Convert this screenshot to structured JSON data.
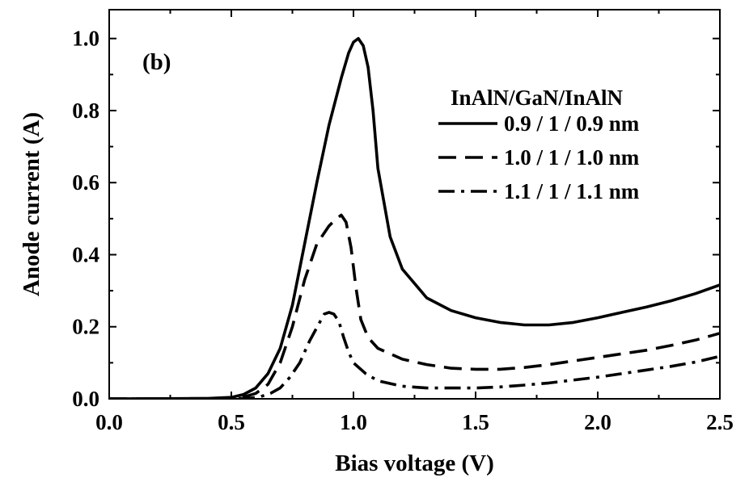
{
  "chart_data": {
    "type": "line",
    "panel_label": "(b)",
    "xlabel": "Bias voltage (V)",
    "ylabel": "Anode current (A)",
    "xlim": [
      0.0,
      2.5
    ],
    "ylim": [
      0.0,
      1.08
    ],
    "x_ticks": [
      0.0,
      0.5,
      1.0,
      1.5,
      2.0,
      2.5
    ],
    "x_tick_labels": [
      "0.0",
      "0.5",
      "1.0",
      "1.5",
      "2.0",
      "2.5"
    ],
    "y_ticks": [
      0.0,
      0.2,
      0.4,
      0.6,
      0.8,
      1.0
    ],
    "y_tick_labels": [
      "0.0",
      "0.2",
      "0.4",
      "0.6",
      "0.8",
      "1.0"
    ],
    "grid": false,
    "legend": {
      "title": "InAlN/GaN/InAlN",
      "placement": "top-right"
    },
    "series": [
      {
        "name": "0.9 / 1 / 0.9 nm",
        "style": "solid",
        "color": "#000000",
        "x": [
          0.0,
          0.4,
          0.5,
          0.55,
          0.6,
          0.65,
          0.7,
          0.75,
          0.8,
          0.85,
          0.9,
          0.95,
          0.98,
          1.0,
          1.02,
          1.04,
          1.06,
          1.08,
          1.1,
          1.15,
          1.2,
          1.3,
          1.4,
          1.5,
          1.6,
          1.7,
          1.8,
          1.9,
          2.0,
          2.1,
          2.2,
          2.3,
          2.4,
          2.5
        ],
        "y": [
          0.0,
          0.001,
          0.004,
          0.012,
          0.03,
          0.07,
          0.14,
          0.26,
          0.43,
          0.6,
          0.76,
          0.89,
          0.96,
          0.99,
          1.0,
          0.98,
          0.92,
          0.8,
          0.64,
          0.45,
          0.36,
          0.28,
          0.245,
          0.225,
          0.212,
          0.205,
          0.205,
          0.212,
          0.225,
          0.24,
          0.255,
          0.272,
          0.292,
          0.316
        ]
      },
      {
        "name": "1.0 / 1 / 1.0 nm",
        "style": "dashed",
        "color": "#000000",
        "x": [
          0.0,
          0.45,
          0.55,
          0.6,
          0.65,
          0.7,
          0.75,
          0.8,
          0.85,
          0.9,
          0.93,
          0.95,
          0.97,
          0.99,
          1.01,
          1.03,
          1.06,
          1.1,
          1.2,
          1.3,
          1.4,
          1.5,
          1.6,
          1.7,
          1.8,
          1.9,
          2.0,
          2.1,
          2.2,
          2.3,
          2.4,
          2.5
        ],
        "y": [
          0.0,
          0.001,
          0.005,
          0.015,
          0.04,
          0.1,
          0.2,
          0.33,
          0.43,
          0.48,
          0.5,
          0.51,
          0.49,
          0.42,
          0.31,
          0.22,
          0.17,
          0.14,
          0.11,
          0.095,
          0.085,
          0.082,
          0.082,
          0.087,
          0.095,
          0.105,
          0.115,
          0.125,
          0.135,
          0.148,
          0.163,
          0.182
        ]
      },
      {
        "name": "1.1 / 1 / 1.1 nm",
        "style": "dashdot",
        "color": "#000000",
        "x": [
          0.0,
          0.5,
          0.58,
          0.62,
          0.66,
          0.7,
          0.74,
          0.78,
          0.82,
          0.86,
          0.88,
          0.9,
          0.92,
          0.94,
          0.96,
          0.98,
          1.0,
          1.05,
          1.1,
          1.2,
          1.3,
          1.4,
          1.5,
          1.6,
          1.7,
          1.8,
          1.9,
          2.0,
          2.1,
          2.2,
          2.3,
          2.4,
          2.5
        ],
        "y": [
          0.0,
          0.0,
          0.002,
          0.006,
          0.015,
          0.03,
          0.06,
          0.1,
          0.16,
          0.21,
          0.235,
          0.24,
          0.235,
          0.215,
          0.17,
          0.13,
          0.1,
          0.07,
          0.05,
          0.035,
          0.03,
          0.03,
          0.03,
          0.033,
          0.038,
          0.044,
          0.052,
          0.06,
          0.07,
          0.08,
          0.09,
          0.102,
          0.118
        ]
      }
    ]
  }
}
